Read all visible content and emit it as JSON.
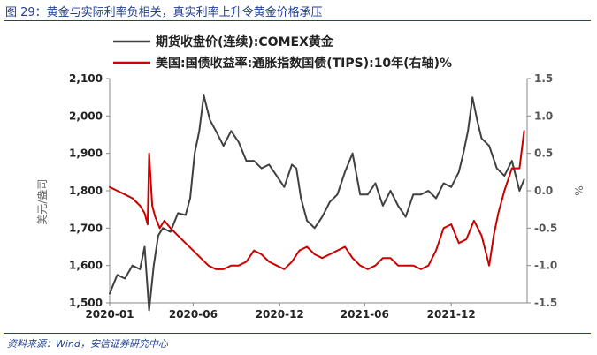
{
  "figure_title": "图 29：黄金与实际利率负相关，真实利率上升令黄金价格承压",
  "source": "资料来源：Wind，安信证券研究中心",
  "chart_data": {
    "type": "line",
    "legend_position": "top",
    "grid": false,
    "x_tick_labels": [
      "2020-01",
      "2020-06",
      "2020-12",
      "2021-06",
      "2021-12"
    ],
    "x_tick_values": [
      0,
      5.5,
      11.2,
      16.8,
      22.5
    ],
    "x_range": [
      0,
      27.5
    ],
    "y_left": {
      "label": "美元/盎司",
      "range": [
        1500,
        2100
      ],
      "ticks": [
        "1,500",
        "1,600",
        "1,700",
        "1,800",
        "1,900",
        "2,000",
        "2,100"
      ],
      "tick_values": [
        1500,
        1600,
        1700,
        1800,
        1900,
        2000,
        2100
      ]
    },
    "y_right": {
      "label": "%",
      "range": [
        -1.5,
        1.5
      ],
      "ticks": [
        "-1.5",
        "-1.0",
        "-0.5",
        "0.0",
        "0.5",
        "1.0",
        "1.5"
      ],
      "tick_values": [
        -1.5,
        -1.0,
        -0.5,
        0.0,
        0.5,
        1.0,
        1.5
      ]
    },
    "series": [
      {
        "name": "期货收盘价(连续):COMEX黄金",
        "axis": "left",
        "color": "#404040",
        "x": [
          0,
          0.5,
          1.0,
          1.5,
          2.0,
          2.3,
          2.6,
          2.9,
          3.2,
          3.5,
          4.0,
          4.5,
          5.0,
          5.3,
          5.6,
          5.9,
          6.2,
          6.6,
          7.0,
          7.5,
          8.0,
          8.5,
          9.0,
          9.5,
          10.0,
          10.5,
          11.0,
          11.5,
          12.0,
          12.3,
          12.6,
          13.0,
          13.5,
          14.0,
          14.5,
          15.0,
          15.5,
          16.0,
          16.5,
          17.0,
          17.5,
          18.0,
          18.5,
          19.0,
          19.5,
          20.0,
          20.5,
          21.0,
          21.5,
          22.0,
          22.5,
          23.0,
          23.3,
          23.6,
          23.9,
          24.2,
          24.5,
          25.0,
          25.5,
          26.0,
          26.5,
          27.0,
          27.3
        ],
        "y": [
          1525,
          1575,
          1565,
          1600,
          1590,
          1650,
          1480,
          1600,
          1680,
          1700,
          1690,
          1740,
          1735,
          1780,
          1900,
          1960,
          2055,
          1990,
          1960,
          1920,
          1960,
          1930,
          1880,
          1880,
          1860,
          1870,
          1840,
          1810,
          1870,
          1860,
          1780,
          1720,
          1700,
          1730,
          1770,
          1790,
          1850,
          1900,
          1790,
          1790,
          1820,
          1760,
          1800,
          1760,
          1730,
          1790,
          1790,
          1800,
          1780,
          1820,
          1810,
          1850,
          1900,
          1960,
          2050,
          1990,
          1940,
          1920,
          1860,
          1840,
          1880,
          1800,
          1830
        ]
      },
      {
        "name": "美国:国债收益率:通胀指数国债(TIPS):10年(右轴)%",
        "axis": "right",
        "color": "#cc0000",
        "x": [
          0,
          0.5,
          1.0,
          1.5,
          2.0,
          2.3,
          2.5,
          2.6,
          2.8,
          3.0,
          3.3,
          3.6,
          4.0,
          4.5,
          5.0,
          5.5,
          6.0,
          6.5,
          7.0,
          7.5,
          8.0,
          8.5,
          9.0,
          9.5,
          10.0,
          10.5,
          11.0,
          11.5,
          12.0,
          12.5,
          13.0,
          13.5,
          14.0,
          14.5,
          15.0,
          15.5,
          16.0,
          16.5,
          17.0,
          17.5,
          18.0,
          18.5,
          19.0,
          19.5,
          20.0,
          20.5,
          21.0,
          21.5,
          22.0,
          22.5,
          23.0,
          23.5,
          24.0,
          24.5,
          25.0,
          25.3,
          25.6,
          26.0,
          26.5,
          27.0,
          27.3
        ],
        "y": [
          0.05,
          0.0,
          -0.05,
          -0.1,
          -0.2,
          -0.3,
          -0.45,
          0.5,
          -0.2,
          -0.35,
          -0.5,
          -0.4,
          -0.5,
          -0.6,
          -0.7,
          -0.8,
          -0.9,
          -1.0,
          -1.05,
          -1.05,
          -1.0,
          -1.0,
          -0.95,
          -0.8,
          -0.85,
          -0.95,
          -1.0,
          -1.05,
          -0.95,
          -0.8,
          -0.75,
          -0.85,
          -0.9,
          -0.85,
          -0.8,
          -0.75,
          -0.9,
          -1.0,
          -1.05,
          -1.0,
          -0.9,
          -0.9,
          -1.0,
          -1.0,
          -1.0,
          -1.05,
          -1.0,
          -0.8,
          -0.5,
          -0.45,
          -0.7,
          -0.65,
          -0.4,
          -0.6,
          -1.0,
          -0.6,
          -0.3,
          0.0,
          0.3,
          0.3,
          0.8
        ]
      }
    ]
  }
}
